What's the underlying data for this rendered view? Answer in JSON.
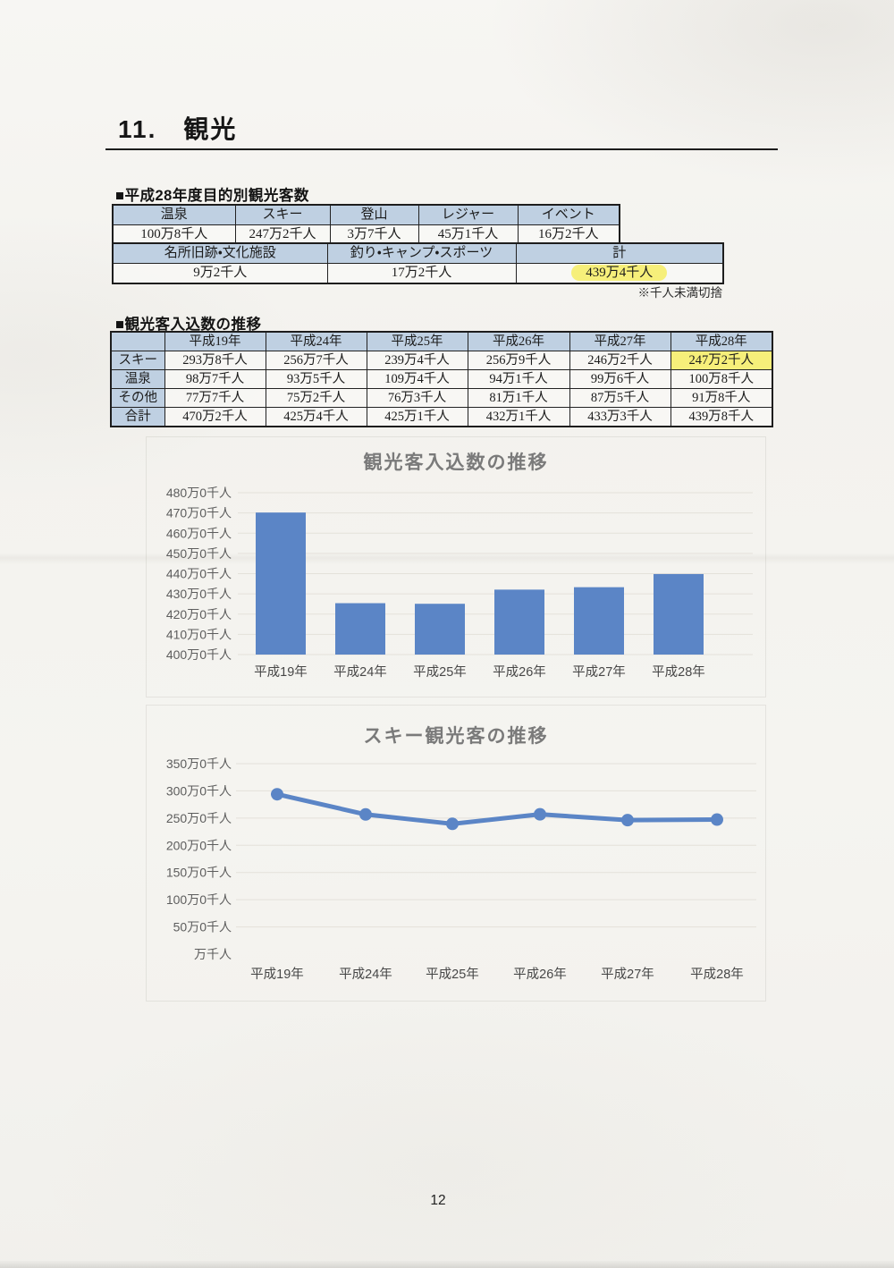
{
  "page": {
    "title": "11.　観光",
    "page_number": "12"
  },
  "colors": {
    "header_bg": "#bfd0e2",
    "highlight_yellow": "#f6ef7a",
    "chart_blue": "#5b85c6",
    "grid_gray": "#e4e1da",
    "axis_label_gray": "#5d5d5d",
    "x_label_dark": "#474747"
  },
  "purpose_section": {
    "heading": "■平成28年度目的別観光客数",
    "note": "※千人未満切捨",
    "table_top": {
      "headers": [
        "温泉",
        "スキー",
        "登山",
        "レジャー",
        "イベント"
      ],
      "values": [
        "100万8千人",
        "247万2千人",
        "3万7千人",
        "45万1千人",
        "16万2千人"
      ]
    },
    "table_bottom": {
      "headers": [
        "名所旧跡・文化施設",
        "釣り・キャンプ・スポーツ",
        "計"
      ],
      "values": [
        "9万2千人",
        "17万2千人",
        "439万4千人"
      ],
      "highlight_index": 2
    }
  },
  "trend_section": {
    "heading": "■観光客入込数の推移",
    "table": {
      "col_headers": [
        "",
        "平成19年",
        "平成24年",
        "平成25年",
        "平成26年",
        "平成27年",
        "平成28年"
      ],
      "rows": [
        {
          "label": "スキー",
          "values": [
            "293万8千人",
            "256万7千人",
            "239万4千人",
            "256万9千人",
            "246万2千人",
            "247万2千人"
          ]
        },
        {
          "label": "温泉",
          "values": [
            "98万7千人",
            "93万5千人",
            "109万4千人",
            "94万1千人",
            "99万6千人",
            "100万8千人"
          ]
        },
        {
          "label": "その他",
          "values": [
            "77万7千人",
            "75万2千人",
            "76万3千人",
            "81万1千人",
            "87万5千人",
            "91万8千人"
          ]
        },
        {
          "label": "合計",
          "values": [
            "470万2千人",
            "425万4千人",
            "425万1千人",
            "432万1千人",
            "433万3千人",
            "439万8千人"
          ]
        }
      ],
      "highlight": {
        "row": 0,
        "col": 5
      }
    }
  },
  "chart_data": [
    {
      "type": "bar",
      "title": "観光客入込数の推移",
      "categories": [
        "平成19年",
        "平成24年",
        "平成25年",
        "平成26年",
        "平成27年",
        "平成28年"
      ],
      "values": [
        470.2,
        425.4,
        425.1,
        432.1,
        433.3,
        439.8
      ],
      "unit": "万人",
      "ylim": [
        400,
        480
      ],
      "ytick_step": 10,
      "ytick_labels": [
        "400万0千人",
        "410万0千人",
        "420万0千人",
        "430万0千人",
        "440万0千人",
        "450万0千人",
        "460万0千人",
        "470万0千人",
        "480万0千人"
      ],
      "grid": true,
      "legend": "none",
      "bar_color": "#5b85c6"
    },
    {
      "type": "line",
      "title": "スキー観光客の推移",
      "categories": [
        "平成19年",
        "平成24年",
        "平成25年",
        "平成26年",
        "平成27年",
        "平成28年"
      ],
      "values": [
        293.8,
        256.7,
        239.4,
        256.9,
        246.2,
        247.2
      ],
      "unit": "万人",
      "ylim": [
        0,
        350
      ],
      "ytick_step": 50,
      "ytick_labels": [
        "万千人",
        "50万0千人",
        "100万0千人",
        "150万0千人",
        "200万0千人",
        "250万0千人",
        "300万0千人",
        "350万0千人"
      ],
      "grid": true,
      "legend": "none",
      "line_color": "#5b85c6"
    }
  ]
}
